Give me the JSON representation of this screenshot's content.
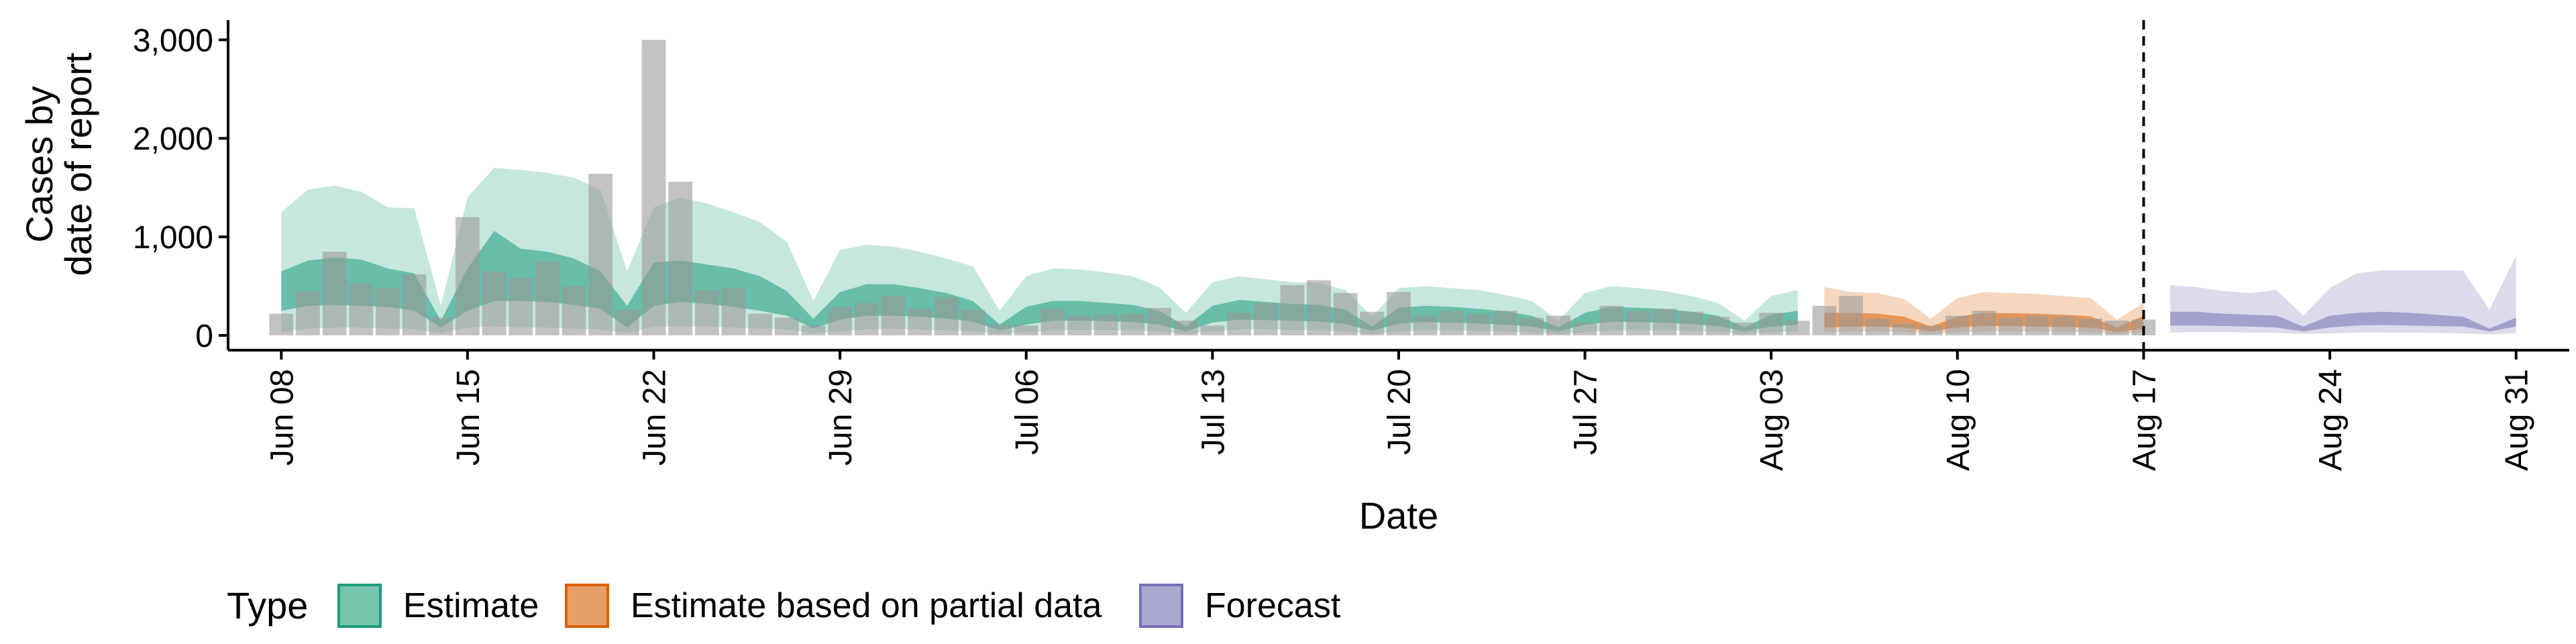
{
  "chart_data": {
    "type": "area",
    "xlabel": "Date",
    "ylabel": [
      "Cases by",
      "date of report"
    ],
    "yticks": [
      0,
      1000,
      2000,
      3000
    ],
    "ytick_labels": [
      "0",
      "1,000",
      "2,000",
      "3,000"
    ],
    "ylim": [
      -150,
      3200
    ],
    "xlim": [
      "2020-06-06",
      "2020-09-02"
    ],
    "xticks": [
      "2020-06-08",
      "2020-06-15",
      "2020-06-22",
      "2020-06-29",
      "2020-07-06",
      "2020-07-13",
      "2020-07-20",
      "2020-07-27",
      "2020-08-03",
      "2020-08-10",
      "2020-08-17",
      "2020-08-24",
      "2020-08-31"
    ],
    "xtick_labels": [
      "Jun 08",
      "Jun 15",
      "Jun 22",
      "Jun 29",
      "Jul 06",
      "Jul 13",
      "Jul 20",
      "Jul 27",
      "Aug 03",
      "Aug 10",
      "Aug 17",
      "Aug 24",
      "Aug 31"
    ],
    "vline": "2020-08-17",
    "observed_cases": {
      "x": [
        "2020-06-08",
        "2020-06-09",
        "2020-06-10",
        "2020-06-11",
        "2020-06-12",
        "2020-06-13",
        "2020-06-14",
        "2020-06-15",
        "2020-06-16",
        "2020-06-17",
        "2020-06-18",
        "2020-06-19",
        "2020-06-20",
        "2020-06-21",
        "2020-06-22",
        "2020-06-23",
        "2020-06-24",
        "2020-06-25",
        "2020-06-26",
        "2020-06-27",
        "2020-06-28",
        "2020-06-29",
        "2020-06-30",
        "2020-07-01",
        "2020-07-02",
        "2020-07-03",
        "2020-07-04",
        "2020-07-05",
        "2020-07-06",
        "2020-07-07",
        "2020-07-08",
        "2020-07-09",
        "2020-07-10",
        "2020-07-11",
        "2020-07-12",
        "2020-07-13",
        "2020-07-14",
        "2020-07-15",
        "2020-07-16",
        "2020-07-17",
        "2020-07-18",
        "2020-07-19",
        "2020-07-20",
        "2020-07-21",
        "2020-07-22",
        "2020-07-23",
        "2020-07-24",
        "2020-07-25",
        "2020-07-26",
        "2020-07-27",
        "2020-07-28",
        "2020-07-29",
        "2020-07-30",
        "2020-07-31",
        "2020-08-01",
        "2020-08-02",
        "2020-08-03",
        "2020-08-04",
        "2020-08-05",
        "2020-08-06",
        "2020-08-07",
        "2020-08-08",
        "2020-08-09",
        "2020-08-10",
        "2020-08-11",
        "2020-08-12",
        "2020-08-13",
        "2020-08-14",
        "2020-08-15",
        "2020-08-16",
        "2020-08-17"
      ],
      "values": [
        220,
        450,
        850,
        530,
        480,
        620,
        180,
        1200,
        650,
        580,
        750,
        500,
        1640,
        260,
        3000,
        1560,
        460,
        480,
        220,
        180,
        100,
        290,
        330,
        400,
        270,
        390,
        260,
        110,
        100,
        270,
        200,
        210,
        220,
        280,
        150,
        100,
        230,
        330,
        510,
        560,
        430,
        240,
        440,
        200,
        250,
        220,
        250,
        180,
        200,
        130,
        300,
        250,
        270,
        240,
        190,
        130,
        230,
        150,
        300,
        400,
        170,
        120,
        100,
        200,
        250,
        180,
        200,
        190,
        170,
        150,
        160
      ]
    },
    "series": [
      {
        "name": "Estimate",
        "color": "#1b9e77",
        "x": [
          "2020-06-08",
          "2020-06-09",
          "2020-06-10",
          "2020-06-11",
          "2020-06-12",
          "2020-06-13",
          "2020-06-14",
          "2020-06-15",
          "2020-06-16",
          "2020-06-17",
          "2020-06-18",
          "2020-06-19",
          "2020-06-20",
          "2020-06-21",
          "2020-06-22",
          "2020-06-23",
          "2020-06-24",
          "2020-06-25",
          "2020-06-26",
          "2020-06-27",
          "2020-06-28",
          "2020-06-29",
          "2020-06-30",
          "2020-07-01",
          "2020-07-02",
          "2020-07-03",
          "2020-07-04",
          "2020-07-05",
          "2020-07-06",
          "2020-07-07",
          "2020-07-08",
          "2020-07-09",
          "2020-07-10",
          "2020-07-11",
          "2020-07-12",
          "2020-07-13",
          "2020-07-14",
          "2020-07-15",
          "2020-07-16",
          "2020-07-17",
          "2020-07-18",
          "2020-07-19",
          "2020-07-20",
          "2020-07-21",
          "2020-07-22",
          "2020-07-23",
          "2020-07-24",
          "2020-07-25",
          "2020-07-26",
          "2020-07-27",
          "2020-07-28",
          "2020-07-29",
          "2020-07-30",
          "2020-07-31",
          "2020-08-01",
          "2020-08-02",
          "2020-08-03",
          "2020-08-04"
        ],
        "lower90": [
          30,
          70,
          80,
          80,
          70,
          60,
          20,
          80,
          90,
          80,
          80,
          70,
          60,
          20,
          90,
          90,
          90,
          80,
          70,
          60,
          20,
          40,
          60,
          70,
          60,
          50,
          40,
          15,
          30,
          50,
          55,
          55,
          50,
          40,
          15,
          40,
          60,
          60,
          55,
          50,
          40,
          15,
          40,
          50,
          50,
          45,
          40,
          30,
          15,
          30,
          50,
          50,
          50,
          45,
          35,
          15,
          30,
          40
        ],
        "upper90": [
          1250,
          1480,
          1520,
          1460,
          1300,
          1290,
          300,
          1400,
          1700,
          1680,
          1650,
          1600,
          1480,
          650,
          1300,
          1400,
          1340,
          1250,
          1150,
          950,
          350,
          870,
          920,
          900,
          850,
          780,
          700,
          250,
          600,
          680,
          670,
          640,
          600,
          490,
          230,
          540,
          600,
          570,
          540,
          530,
          460,
          190,
          480,
          500,
          480,
          460,
          410,
          350,
          150,
          430,
          500,
          480,
          450,
          400,
          330,
          150,
          400,
          460
        ],
        "lower50": [
          250,
          300,
          310,
          300,
          290,
          250,
          80,
          250,
          350,
          350,
          340,
          310,
          270,
          80,
          300,
          340,
          320,
          290,
          250,
          200,
          70,
          160,
          200,
          200,
          190,
          170,
          140,
          50,
          110,
          150,
          150,
          145,
          135,
          110,
          40,
          130,
          160,
          155,
          150,
          140,
          115,
          45,
          120,
          135,
          130,
          120,
          110,
          90,
          40,
          110,
          140,
          135,
          130,
          115,
          95,
          40,
          90,
          110
        ],
        "upper50": [
          650,
          760,
          790,
          770,
          680,
          630,
          150,
          680,
          1060,
          880,
          850,
          780,
          650,
          300,
          740,
          760,
          720,
          680,
          600,
          450,
          170,
          440,
          520,
          520,
          480,
          430,
          350,
          110,
          290,
          350,
          350,
          330,
          310,
          250,
          90,
          300,
          360,
          340,
          320,
          310,
          260,
          90,
          280,
          300,
          290,
          270,
          245,
          200,
          80,
          230,
          290,
          280,
          270,
          240,
          200,
          80,
          210,
          250
        ]
      },
      {
        "name": "Estimate based on partial data",
        "color": "#d95f02",
        "x": [
          "2020-08-05",
          "2020-08-06",
          "2020-08-07",
          "2020-08-08",
          "2020-08-09",
          "2020-08-10",
          "2020-08-11",
          "2020-08-12",
          "2020-08-13",
          "2020-08-14",
          "2020-08-15",
          "2020-08-16",
          "2020-08-17"
        ],
        "lower90": [
          30,
          40,
          40,
          35,
          15,
          30,
          40,
          40,
          40,
          35,
          30,
          15,
          30
        ],
        "upper90": [
          490,
          440,
          430,
          370,
          170,
          380,
          440,
          430,
          420,
          400,
          380,
          160,
          330
        ],
        "lower50": [
          80,
          90,
          90,
          80,
          40,
          80,
          95,
          95,
          90,
          85,
          80,
          35,
          70
        ],
        "upper50": [
          230,
          230,
          220,
          190,
          90,
          190,
          230,
          225,
          220,
          210,
          195,
          80,
          200
        ]
      },
      {
        "name": "Forecast",
        "color": "#7570b3",
        "x": [
          "2020-08-18",
          "2020-08-19",
          "2020-08-20",
          "2020-08-21",
          "2020-08-22",
          "2020-08-23",
          "2020-08-24",
          "2020-08-25",
          "2020-08-26",
          "2020-08-27",
          "2020-08-28",
          "2020-08-29",
          "2020-08-30",
          "2020-08-31"
        ],
        "lower90": [
          30,
          35,
          35,
          30,
          25,
          15,
          20,
          30,
          30,
          28,
          25,
          20,
          10,
          20
        ],
        "upper90": [
          510,
          490,
          450,
          430,
          460,
          200,
          480,
          630,
          660,
          660,
          660,
          660,
          260,
          810
        ],
        "lower50": [
          100,
          100,
          95,
          90,
          80,
          40,
          80,
          100,
          105,
          100,
          95,
          90,
          40,
          90
        ],
        "upper50": [
          240,
          240,
          220,
          210,
          200,
          90,
          200,
          230,
          240,
          230,
          210,
          190,
          70,
          180
        ]
      }
    ],
    "legend": {
      "title": "Type",
      "position": "bottom",
      "items": [
        {
          "label": "Estimate",
          "color": "#1b9e77"
        },
        {
          "label": "Estimate based on partial data",
          "color": "#d95f02"
        },
        {
          "label": "Forecast",
          "color": "#7570b3"
        }
      ]
    }
  }
}
